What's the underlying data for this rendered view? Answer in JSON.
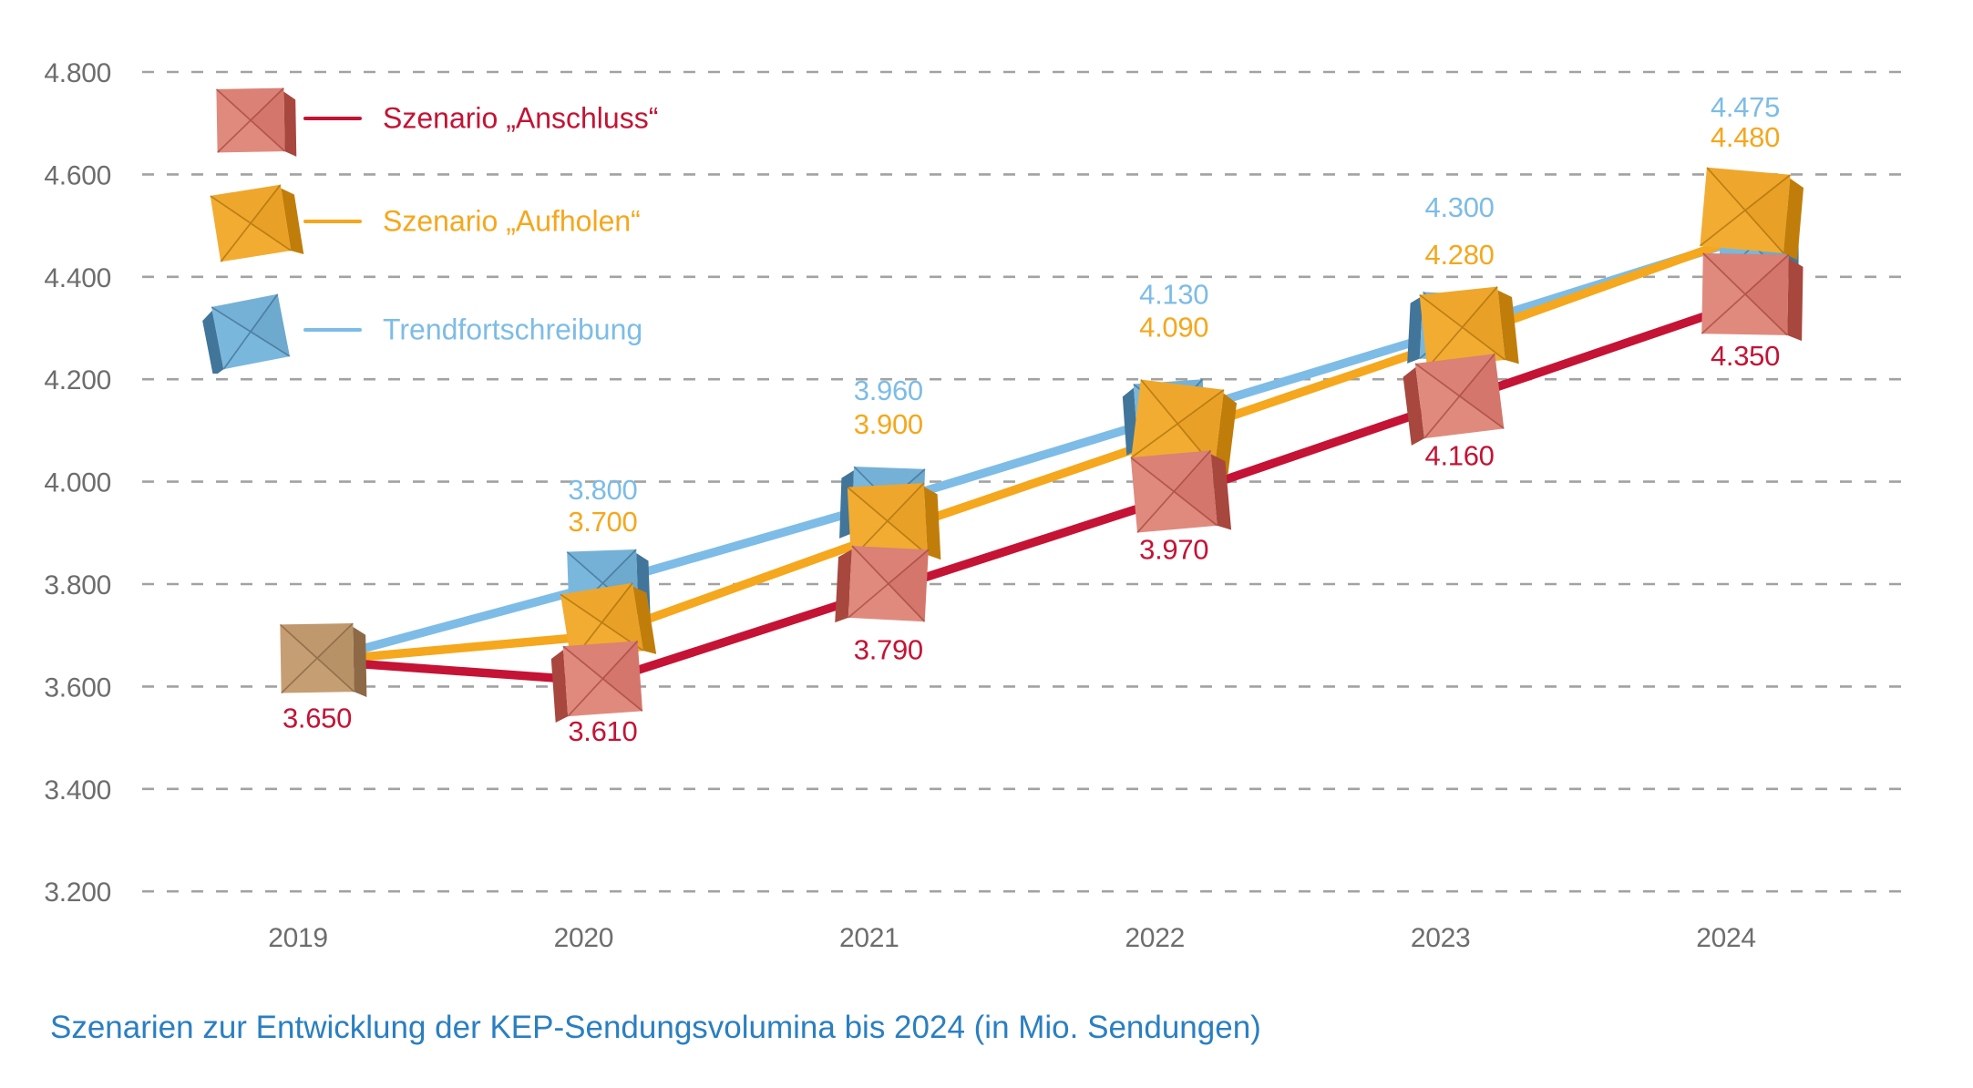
{
  "chart_data": {
    "type": "line",
    "title": "Szenarien zur Entwicklung der KEP-Sendungsvolumina bis 2024 (in Mio. Sendungen)",
    "categories": [
      "2019",
      "2020",
      "2021",
      "2022",
      "2023",
      "2024"
    ],
    "unit": "Mio. Sendungen",
    "ylim": [
      3200,
      4800
    ],
    "ytick_step": 200,
    "ytick_labels": [
      "4.800",
      "4.600",
      "4.400",
      "4.200",
      "4.000",
      "3.800",
      "3.600",
      "3.400",
      "3.200"
    ],
    "grid": "horizontal-dashed",
    "legend_position": "top-left",
    "series": [
      {
        "name": "Szenario „Anschluss“",
        "color": "#c41334",
        "marker": "red-paper-package",
        "values": [
          3650,
          3610,
          3790,
          3970,
          4160,
          4350
        ],
        "value_labels": [
          "3.650",
          "3.610",
          "3.790",
          "3.970",
          "4.160",
          "4.350"
        ]
      },
      {
        "name": "Szenario „Aufholen“",
        "color": "#f5a71d",
        "marker": "yellow-paper-package",
        "values": [
          3650,
          3700,
          3900,
          4090,
          4280,
          4480
        ],
        "value_labels": [
          null,
          "3.700",
          "3.900",
          "4.090",
          "4.280",
          "4.480"
        ]
      },
      {
        "name": "Trendfortschreibung",
        "color": "#7dbce6",
        "marker": "blue-paper-package",
        "values": [
          3650,
          3800,
          3960,
          4130,
          4300,
          4475
        ],
        "value_labels": [
          null,
          "3.800",
          "3.960",
          "4.130",
          "4.300",
          "4.475"
        ]
      }
    ],
    "start_marker": {
      "year": "2019",
      "value": 3650,
      "label": "3.650",
      "label_color": "#c41334",
      "marker": "brown-paper-package"
    },
    "axis_text_color": "#6d6d6d",
    "gridline_color": "#a2a2a2"
  }
}
